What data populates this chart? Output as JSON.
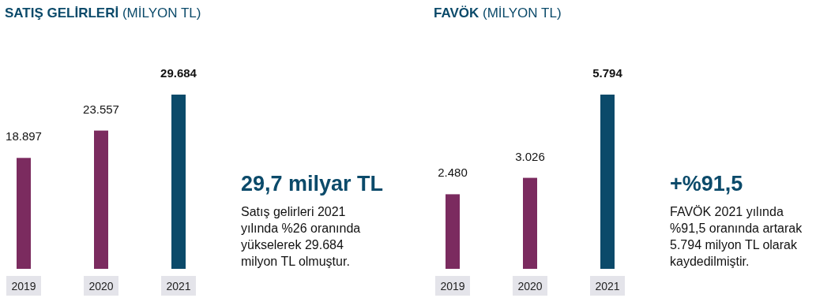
{
  "chart_data": [
    {
      "type": "bar",
      "title": "SATIŞ GELİRLERİ",
      "subtitle": "(MİLYON TL)",
      "categories": [
        "2019",
        "2020",
        "2021"
      ],
      "values": [
        18897,
        23557,
        29684
      ],
      "value_labels": [
        "18.897",
        "23.557",
        "29.684"
      ],
      "colors": [
        "#7b2b5f",
        "#7b2b5f",
        "#0b4a6a"
      ],
      "annotations": [
        "29,7 milyar TL",
        "Satış gelirleri 2021 yılında %26 oranında yükselerek 29.684 milyon TL olmuştur."
      ]
    },
    {
      "type": "bar",
      "title": "FAVÖK",
      "subtitle": "(MİLYON TL)",
      "categories": [
        "2019",
        "2020",
        "2021"
      ],
      "values": [
        2480,
        3026,
        5794
      ],
      "value_labels": [
        "2.480",
        "3.026",
        "5.794"
      ],
      "colors": [
        "#7b2b5f",
        "#7b2b5f",
        "#0b4a6a"
      ],
      "annotations": [
        "+%91,5",
        "FAVÖK 2021 yılında %91,5 oranında artarak 5.794 milyon TL olarak kaydedilmiştir."
      ]
    }
  ]
}
